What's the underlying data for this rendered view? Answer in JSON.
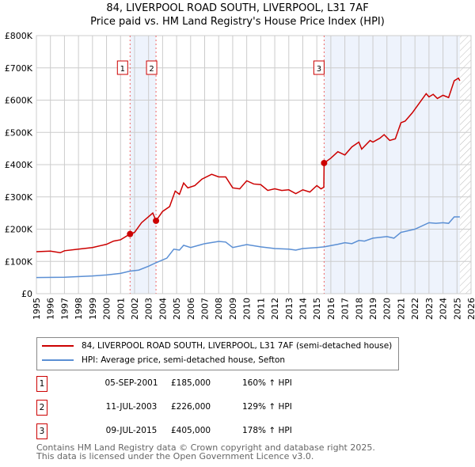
{
  "chart_data": {
    "type": "line",
    "title": "84, LIVERPOOL ROAD SOUTH, LIVERPOOL, L31 7AF",
    "subtitle": "Price paid vs. HM Land Registry's House Price Index (HPI)",
    "xlim": [
      1995,
      2026
    ],
    "ylim": [
      0,
      800000
    ],
    "x_ticks": [
      "1995",
      "1996",
      "1997",
      "1998",
      "1999",
      "2000",
      "2001",
      "2002",
      "2003",
      "2004",
      "2005",
      "2006",
      "2007",
      "2008",
      "2009",
      "2010",
      "2011",
      "2012",
      "2013",
      "2014",
      "2015",
      "2016",
      "2017",
      "2018",
      "2019",
      "2020",
      "2021",
      "2022",
      "2023",
      "2024",
      "2025",
      "2026"
    ],
    "y_ticks": [
      {
        "v": 0,
        "label": "£0"
      },
      {
        "v": 100000,
        "label": "£100K"
      },
      {
        "v": 200000,
        "label": "£200K"
      },
      {
        "v": 300000,
        "label": "£300K"
      },
      {
        "v": 400000,
        "label": "£400K"
      },
      {
        "v": 500000,
        "label": "£500K"
      },
      {
        "v": 600000,
        "label": "£600K"
      },
      {
        "v": 700000,
        "label": "£700K"
      },
      {
        "v": 800000,
        "label": "£800K"
      }
    ],
    "grid": true,
    "shaded_ranges": [
      [
        2001.68,
        2003.53
      ],
      [
        2015.52,
        2025.2
      ]
    ],
    "forecast_hatch_from": 2025.2,
    "series": [
      {
        "name": "84, LIVERPOOL ROAD SOUTH, LIVERPOOL, L31 7AF (semi-detached house)",
        "color": "#cc0000",
        "points": [
          [
            1995,
            130
          ],
          [
            1996,
            132
          ],
          [
            1996.7,
            127
          ],
          [
            1997,
            133
          ],
          [
            1998,
            138
          ],
          [
            1999,
            143
          ],
          [
            2000,
            153
          ],
          [
            2000.5,
            163
          ],
          [
            2001,
            167
          ],
          [
            2001.68,
            185
          ],
          [
            2002,
            190
          ],
          [
            2002.5,
            220
          ],
          [
            2003.3,
            250
          ],
          [
            2003.53,
            226
          ],
          [
            2004,
            255
          ],
          [
            2004.5,
            270
          ],
          [
            2004.9,
            318
          ],
          [
            2005.2,
            308
          ],
          [
            2005.5,
            343
          ],
          [
            2005.8,
            328
          ],
          [
            2006.3,
            335
          ],
          [
            2006.8,
            355
          ],
          [
            2007.5,
            370
          ],
          [
            2008,
            362
          ],
          [
            2008.5,
            362
          ],
          [
            2009,
            328
          ],
          [
            2009.5,
            325
          ],
          [
            2010,
            350
          ],
          [
            2010.5,
            340
          ],
          [
            2011,
            338
          ],
          [
            2011.5,
            320
          ],
          [
            2012,
            325
          ],
          [
            2012.5,
            320
          ],
          [
            2013,
            322
          ],
          [
            2013.5,
            310
          ],
          [
            2014,
            322
          ],
          [
            2014.5,
            315
          ],
          [
            2015,
            335
          ],
          [
            2015.3,
            325
          ],
          [
            2015.5,
            330
          ],
          [
            2015.52,
            405
          ],
          [
            2016,
            420
          ],
          [
            2016.5,
            440
          ],
          [
            2017,
            430
          ],
          [
            2017.5,
            455
          ],
          [
            2018,
            470
          ],
          [
            2018.2,
            448
          ],
          [
            2018.8,
            475
          ],
          [
            2019,
            470
          ],
          [
            2019.5,
            482
          ],
          [
            2019.8,
            493
          ],
          [
            2020.2,
            475
          ],
          [
            2020.6,
            480
          ],
          [
            2021,
            530
          ],
          [
            2021.3,
            535
          ],
          [
            2021.8,
            560
          ],
          [
            2022.3,
            590
          ],
          [
            2022.8,
            620
          ],
          [
            2023,
            610
          ],
          [
            2023.3,
            618
          ],
          [
            2023.6,
            605
          ],
          [
            2024,
            615
          ],
          [
            2024.4,
            608
          ],
          [
            2024.8,
            660
          ],
          [
            2025.1,
            668
          ],
          [
            2025.2,
            660
          ]
        ]
      },
      {
        "name": "HPI: Average price, semi-detached house, Sefton",
        "color": "#5b8fd4",
        "points": [
          [
            1995,
            50
          ],
          [
            1997,
            51
          ],
          [
            1999,
            55
          ],
          [
            2000,
            58
          ],
          [
            2001,
            63
          ],
          [
            2001.68,
            70
          ],
          [
            2002.3,
            73
          ],
          [
            2003,
            85
          ],
          [
            2003.53,
            96
          ],
          [
            2004.3,
            110
          ],
          [
            2004.8,
            138
          ],
          [
            2005.2,
            135
          ],
          [
            2005.5,
            150
          ],
          [
            2006,
            143
          ],
          [
            2007,
            155
          ],
          [
            2008,
            162
          ],
          [
            2008.5,
            160
          ],
          [
            2009,
            143
          ],
          [
            2010,
            152
          ],
          [
            2011,
            145
          ],
          [
            2012,
            140
          ],
          [
            2013,
            138
          ],
          [
            2013.5,
            135
          ],
          [
            2014,
            140
          ],
          [
            2015,
            143
          ],
          [
            2015.52,
            145
          ],
          [
            2016.5,
            153
          ],
          [
            2017,
            158
          ],
          [
            2017.5,
            155
          ],
          [
            2018,
            165
          ],
          [
            2018.4,
            163
          ],
          [
            2019,
            172
          ],
          [
            2020,
            177
          ],
          [
            2020.5,
            172
          ],
          [
            2021,
            190
          ],
          [
            2022,
            200
          ],
          [
            2023,
            220
          ],
          [
            2023.5,
            218
          ],
          [
            2024,
            220
          ],
          [
            2024.4,
            218
          ],
          [
            2024.8,
            238
          ],
          [
            2025.2,
            238
          ]
        ]
      }
    ],
    "value_units": "thousands GBP",
    "sales": [
      {
        "num": "1",
        "x": 2001.68,
        "value": 185,
        "date": "05-SEP-2001",
        "price": "£185,000",
        "hpi": "160% ↑ HPI"
      },
      {
        "num": "2",
        "x": 2003.53,
        "value": 226,
        "date": "11-JUL-2003",
        "price": "£226,000",
        "hpi": "129% ↑ HPI"
      },
      {
        "num": "3",
        "x": 2015.52,
        "value": 405,
        "date": "09-JUL-2015",
        "price": "£405,000",
        "hpi": "178% ↑ HPI"
      }
    ],
    "legend_position": "below"
  },
  "legend": {
    "property": "84, LIVERPOOL ROAD SOUTH, LIVERPOOL, L31 7AF (semi-detached house)",
    "hpi": "HPI: Average price, semi-detached house, Sefton"
  },
  "footer": {
    "line1": "Contains HM Land Registry data © Crown copyright and database right 2025.",
    "line2": "This data is licensed under the Open Government Licence v3.0."
  }
}
